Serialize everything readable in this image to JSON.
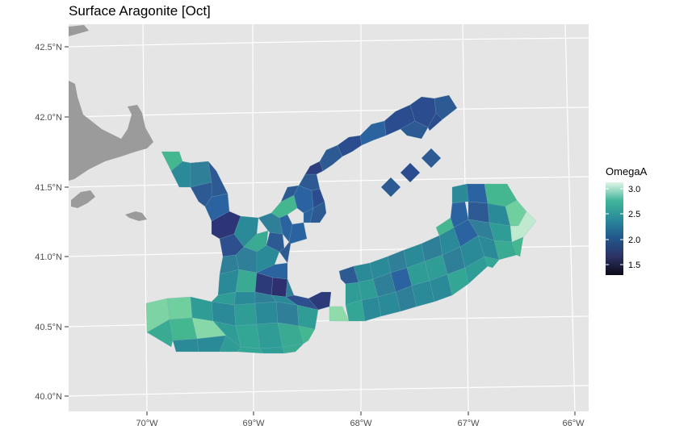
{
  "title": "Surface Aragonite [Oct]",
  "colors": {
    "panel": "#e5e5e5",
    "grid": "#ffffff",
    "land": "#9b9b9b",
    "cell_border": "#6fa8b8"
  },
  "chart_data": {
    "type": "heatmap",
    "kind": "choropleth map of polygon cells",
    "title": "Surface Aragonite [Oct]",
    "xlabel": "",
    "ylabel": "",
    "x_ticks": [
      "70°W",
      "69°W",
      "68°W",
      "67°W",
      "66°W"
    ],
    "y_ticks": [
      "42.5°N",
      "42.0°N",
      "41.5°N",
      "41.0°N",
      "40.5°N",
      "40.0°N"
    ],
    "legend": {
      "title": "OmegaA",
      "labels": [
        "3.0",
        "2.5",
        "2.0",
        "1.5"
      ],
      "range": [
        1.3,
        3.2
      ],
      "placement": "right"
    },
    "grid": true
  }
}
